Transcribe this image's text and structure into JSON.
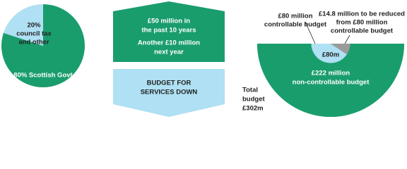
{
  "chart_data": [
    {
      "type": "pie",
      "values": [
        80,
        20
      ],
      "value_labels": [
        [
          "80% Scottish Govt"
        ],
        [
          "20%",
          "council tax",
          "and other"
        ]
      ],
      "colors": [
        "#1a9d6d",
        "#afe0f3"
      ]
    },
    {
      "type": "semicircle",
      "total": 302,
      "total_label": [
        "Total",
        "budget",
        "£302m"
      ],
      "values": [
        222,
        80,
        14.8
      ],
      "value_labels": [
        [
          "£222 million",
          "non-controllable budget"
        ],
        [
          "£80m"
        ],
        [
          "£14.8 million to be reduced",
          "from £80 million",
          "controllable budget"
        ]
      ],
      "annotation": [
        "£80 million",
        "controllable budget"
      ],
      "colors": [
        "#1a9d6d",
        "#afe0f3",
        "#9a9a9a"
      ]
    }
  ],
  "arrows": {
    "up": [
      "£50 million in",
      "the past 10 years",
      "Another £10 million",
      "next year"
    ],
    "down": [
      "BUDGET FOR",
      "SERVICES DOWN"
    ]
  }
}
